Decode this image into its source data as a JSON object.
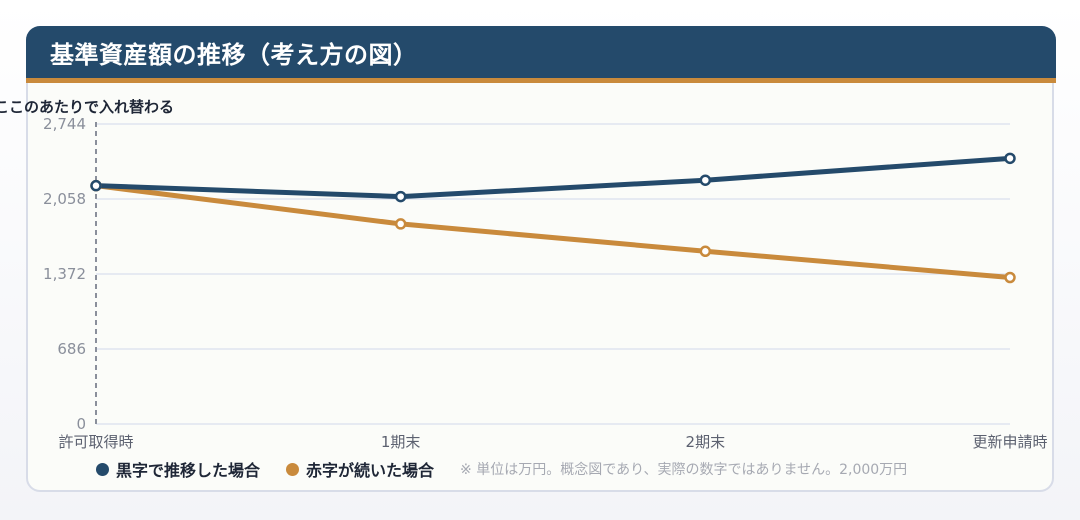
{
  "title": "基準資産額の推移（考え方の図）",
  "annotation": "ここのあたりで入れ替わる",
  "note": "※ 単位は万円。概念図であり、実際の数字ではありません。2,000万円",
  "colors": {
    "navy": "#244a6b",
    "orange": "#c98a3c",
    "grid": "#dfe3f0"
  },
  "chart_data": {
    "type": "line",
    "categories": [
      "許可取得時",
      "1期末",
      "2期末",
      "更新申請時"
    ],
    "series": [
      {
        "name": "黒字で推移した場合",
        "values": [
          2180,
          2080,
          2230,
          2430
        ],
        "color": "#244a6b"
      },
      {
        "name": "赤字が続いた場合",
        "values": [
          2180,
          1830,
          1580,
          1340
        ],
        "color": "#c98a3c"
      }
    ],
    "yticks": [
      "0",
      "686",
      "1,372",
      "2,058",
      "2,744"
    ],
    "ylim": [
      0,
      2744
    ],
    "grid": true,
    "legend": "bottom-left"
  }
}
